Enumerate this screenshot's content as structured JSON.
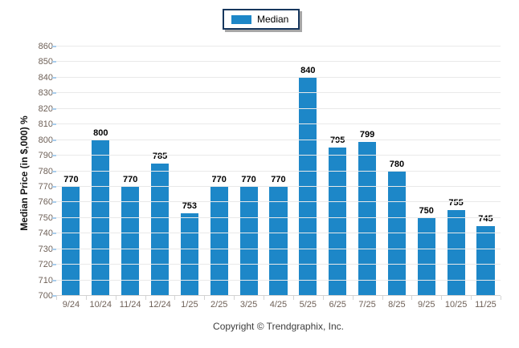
{
  "legend": {
    "label": "Median"
  },
  "chart_data": {
    "type": "bar",
    "title": "",
    "categories": [
      "9/24",
      "10/24",
      "11/24",
      "12/24",
      "1/25",
      "2/25",
      "3/25",
      "4/25",
      "5/25",
      "6/25",
      "7/25",
      "8/25",
      "9/25",
      "10/25",
      "11/25"
    ],
    "series": [
      {
        "name": "Median",
        "values": [
          770,
          800,
          770,
          785,
          753,
          770,
          770,
          770,
          840,
          795,
          799,
          780,
          750,
          755,
          745
        ]
      }
    ],
    "xlabel": "",
    "ylabel": "Median Price (in $,000) %",
    "ylim": [
      700,
      860
    ],
    "ytick_step": 10,
    "grid": true,
    "legend_position": "top-center",
    "bar_color": "#1d87c8",
    "gridline_color": "#e9e9e9",
    "baseline_color": "#d2d2d2",
    "tick_label_color": "#6f6158"
  },
  "footer": {
    "copyright": "Copyright © Trendgraphix, Inc."
  }
}
